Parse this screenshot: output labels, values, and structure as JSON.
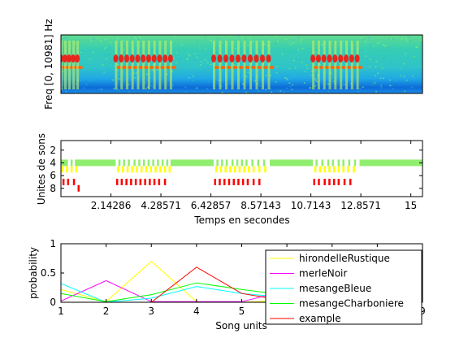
{
  "chart_data": [
    {
      "type": "heatmap",
      "ylabel": "Freq [0, 10981] Hz",
      "xlabel": "",
      "colormap": "jet",
      "ticks": "none",
      "note_events": [
        {
          "start": 0.0,
          "end": 0.7,
          "count": 5
        },
        {
          "start": 2.35,
          "end": 4.7,
          "count": 11
        },
        {
          "start": 6.55,
          "end": 8.9,
          "count": 10
        },
        {
          "start": 10.8,
          "end": 12.7,
          "count": 9
        }
      ]
    },
    {
      "type": "scatter",
      "xlabel": "Temps en secondes",
      "ylabel": "Unites de sons",
      "xlim": [
        0,
        15.5
      ],
      "ylim": [
        0.5,
        9.3
      ],
      "y_reversed": true,
      "xticks": [
        "2.14286",
        "4.28571",
        "6.42857",
        "8.57143",
        "10.7143",
        "12.8571",
        "15"
      ],
      "xtick_values": [
        2.14286,
        4.28571,
        6.42857,
        8.57143,
        10.7143,
        12.8571,
        15
      ],
      "yticks": [
        "2",
        "4",
        "6",
        "8"
      ],
      "ytick_values": [
        2,
        4,
        6,
        8
      ],
      "series": [
        {
          "unit": 4,
          "color": "#90ee6e",
          "segments": [
            [
              0.0,
              0.3
            ],
            [
              0.6,
              2.35
            ],
            [
              4.7,
              6.55
            ],
            [
              8.95,
              10.8
            ],
            [
              12.8,
              15.5
            ]
          ],
          "ticks": [
            0.45,
            2.5,
            2.7,
            2.9,
            3.15,
            3.35,
            3.55,
            3.75,
            3.95,
            4.15,
            4.35,
            4.55,
            6.7,
            6.9,
            7.1,
            7.35,
            7.55,
            7.75,
            7.95,
            8.2,
            8.45,
            8.7,
            10.95,
            11.2,
            11.45,
            11.65,
            11.9,
            12.1,
            12.35,
            12.6
          ]
        },
        {
          "unit": 5,
          "color": "#ffff00",
          "ticks": [
            0.05,
            0.25,
            0.45,
            0.65,
            2.45,
            2.65,
            2.85,
            3.05,
            3.25,
            3.45,
            3.65,
            3.85,
            4.05,
            4.25,
            4.45,
            4.65,
            6.65,
            6.85,
            7.05,
            7.25,
            7.45,
            7.65,
            7.85,
            8.05,
            8.25,
            8.5,
            8.75,
            10.9,
            11.1,
            11.3,
            11.5,
            11.7,
            11.9,
            12.1,
            12.3,
            12.55
          ]
        },
        {
          "unit": 7,
          "color": "#ff0000",
          "ticks": [
            0.1,
            0.3,
            0.55,
            2.4,
            2.6,
            2.8,
            3.0,
            3.2,
            3.4,
            3.6,
            3.8,
            4.0,
            4.2,
            4.45,
            6.6,
            6.8,
            7.0,
            7.2,
            7.4,
            7.6,
            7.8,
            8.0,
            8.25,
            8.5,
            10.85,
            11.05,
            11.3,
            11.5,
            11.7,
            11.9,
            12.15,
            12.4
          ]
        },
        {
          "unit": 8,
          "color": "#ff0000",
          "ticks": [
            0.75
          ]
        }
      ]
    },
    {
      "type": "line",
      "xlabel": "Song units",
      "ylabel": "probability",
      "xlim": [
        1,
        9
      ],
      "ylim": [
        0,
        1
      ],
      "xticks": [
        "1",
        "2",
        "3",
        "4",
        "5",
        "6",
        "7",
        "8",
        "9"
      ],
      "yticks": [
        "0",
        "0.5",
        "1"
      ],
      "x": [
        1,
        2,
        3,
        4,
        5,
        6,
        7,
        8,
        9
      ],
      "legend_position": "top-right",
      "series": [
        {
          "name": "hirondelleRustique",
          "color": "#ffff00",
          "values": [
            0.22,
            0.01,
            0.7,
            0.01,
            0.0,
            0.03,
            0.02,
            0.01,
            0.0
          ]
        },
        {
          "name": "merleNoir",
          "color": "#ff00ff",
          "values": [
            0.02,
            0.37,
            0.01,
            0.01,
            0.01,
            0.2,
            0.1,
            0.05,
            0.01
          ]
        },
        {
          "name": "mesangeBleue",
          "color": "#00ffff",
          "values": [
            0.32,
            0.0,
            0.07,
            0.27,
            0.15,
            0.08,
            0.05,
            0.03,
            0.01
          ]
        },
        {
          "name": "mesangeCharboniere",
          "color": "#00ff00",
          "values": [
            0.15,
            0.01,
            0.13,
            0.33,
            0.22,
            0.12,
            0.08,
            0.1,
            0.18
          ]
        },
        {
          "name": "example",
          "color": "#ff0000",
          "values": [
            0.0,
            0.0,
            0.0,
            0.6,
            0.15,
            0.02,
            0.01,
            0.01,
            0.0
          ]
        }
      ]
    }
  ]
}
